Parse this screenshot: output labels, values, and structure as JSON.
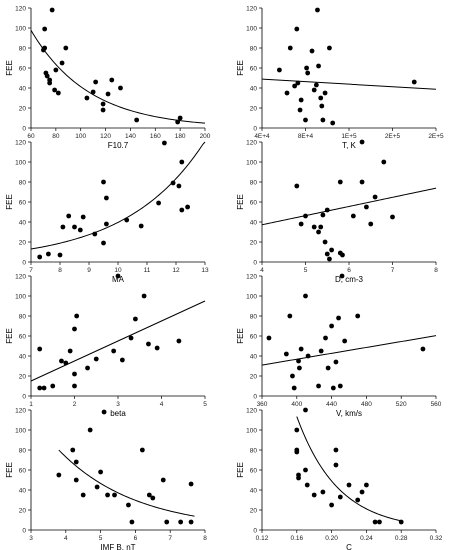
{
  "chart_data": [
    {
      "type": "scatter",
      "xlabel": "F10.7",
      "ylabel": "FEE",
      "xlim": [
        60,
        200
      ],
      "ylim": [
        0,
        120
      ],
      "xticks": [
        "60",
        "80",
        "100",
        "120",
        "140",
        "160",
        "180",
        "200"
      ],
      "yticks": [
        "0",
        "20",
        "40",
        "60",
        "80",
        "100",
        "120"
      ],
      "points": [
        [
          70,
          78
        ],
        [
          71,
          80
        ],
        [
          71,
          99
        ],
        [
          72,
          55
        ],
        [
          73,
          52
        ],
        [
          75,
          48
        ],
        [
          75,
          45
        ],
        [
          77,
          118
        ],
        [
          79,
          38
        ],
        [
          80,
          58
        ],
        [
          82,
          35
        ],
        [
          85,
          65
        ],
        [
          88,
          80
        ],
        [
          105,
          30
        ],
        [
          110,
          36
        ],
        [
          112,
          46
        ],
        [
          118,
          18
        ],
        [
          118,
          24
        ],
        [
          122,
          34
        ],
        [
          125,
          48
        ],
        [
          132,
          40
        ],
        [
          145,
          8
        ],
        [
          178,
          6
        ],
        [
          180,
          10
        ]
      ],
      "fit": {
        "kind": "exp",
        "a": 355,
        "b": -0.0215
      }
    },
    {
      "type": "scatter",
      "xlabel": "T, K",
      "ylabel": "FEE",
      "xlim": [
        40000,
        200000
      ],
      "ylim": [
        0,
        120
      ],
      "xticks": [
        "4E+4",
        "8E+4",
        "1E+5",
        "2E+5",
        "2E+5"
      ],
      "yticks": [
        "0",
        "20",
        "40",
        "60",
        "80",
        "100",
        "120"
      ],
      "points": [
        [
          56000,
          58
        ],
        [
          63000,
          35
        ],
        [
          66000,
          80
        ],
        [
          70000,
          42
        ],
        [
          72000,
          99
        ],
        [
          73000,
          45
        ],
        [
          75000,
          18
        ],
        [
          76000,
          28
        ],
        [
          80000,
          8
        ],
        [
          81000,
          60
        ],
        [
          82000,
          55
        ],
        [
          86000,
          77
        ],
        [
          88000,
          38
        ],
        [
          90000,
          43
        ],
        [
          91000,
          118
        ],
        [
          92000,
          62
        ],
        [
          94000,
          30
        ],
        [
          95000,
          22
        ],
        [
          96000,
          8
        ],
        [
          98000,
          35
        ],
        [
          102000,
          80
        ],
        [
          105000,
          5
        ],
        [
          180000,
          46
        ]
      ],
      "fit": {
        "kind": "linear",
        "a": 51.5,
        "b": -6.4e-05
      }
    },
    {
      "type": "scatter",
      "xlabel": "MA",
      "ylabel": "FEE",
      "xlim": [
        7,
        13
      ],
      "ylim": [
        0,
        120
      ],
      "xticks": [
        "7",
        "8",
        "9",
        "10",
        "11",
        "12",
        "13"
      ],
      "yticks": [
        "0",
        "20",
        "40",
        "60",
        "80",
        "100",
        "120"
      ],
      "points": [
        [
          7.3,
          5
        ],
        [
          7.6,
          8
        ],
        [
          8.0,
          7
        ],
        [
          8.1,
          35
        ],
        [
          8.3,
          46
        ],
        [
          8.5,
          35
        ],
        [
          8.7,
          32
        ],
        [
          8.8,
          45
        ],
        [
          9.2,
          28
        ],
        [
          9.5,
          19
        ],
        [
          9.5,
          80
        ],
        [
          9.6,
          38
        ],
        [
          9.6,
          64
        ],
        [
          10.3,
          42
        ],
        [
          10.8,
          36
        ],
        [
          11.4,
          59
        ],
        [
          11.6,
          119
        ],
        [
          11.9,
          79
        ],
        [
          12.1,
          76
        ],
        [
          12.2,
          100
        ],
        [
          12.2,
          52
        ],
        [
          12.4,
          55
        ]
      ],
      "fit": {
        "kind": "exp",
        "a": 0.96,
        "b": 0.372
      }
    },
    {
      "type": "scatter",
      "xlabel": "D, cm-3",
      "ylabel": "FEE",
      "xlim": [
        4,
        8
      ],
      "ylim": [
        0,
        120
      ],
      "xticks": [
        "4",
        "5",
        "6",
        "7",
        "8"
      ],
      "yticks": [
        "0",
        "20",
        "40",
        "60",
        "80",
        "100",
        "120"
      ],
      "points": [
        [
          4.8,
          76
        ],
        [
          4.9,
          38
        ],
        [
          5.0,
          46
        ],
        [
          5.2,
          35
        ],
        [
          5.3,
          30
        ],
        [
          5.35,
          35
        ],
        [
          5.4,
          47
        ],
        [
          5.45,
          20
        ],
        [
          5.5,
          8
        ],
        [
          5.5,
          52
        ],
        [
          5.55,
          3
        ],
        [
          5.6,
          12
        ],
        [
          5.8,
          80
        ],
        [
          5.8,
          9
        ],
        [
          5.85,
          7
        ],
        [
          6.1,
          46
        ],
        [
          6.3,
          120
        ],
        [
          6.3,
          80
        ],
        [
          6.4,
          55
        ],
        [
          6.5,
          38
        ],
        [
          6.6,
          65
        ],
        [
          6.8,
          100
        ],
        [
          7.0,
          45
        ]
      ],
      "fit": {
        "kind": "linear",
        "a": 0.63,
        "b": 9.15
      }
    },
    {
      "type": "scatter",
      "xlabel": "beta",
      "ylabel": "FEE",
      "xlim": [
        1,
        5
      ],
      "ylim": [
        0,
        120
      ],
      "xticks": [
        "1",
        "2",
        "3",
        "4",
        "5"
      ],
      "yticks": [
        "0",
        "20",
        "40",
        "60",
        "80",
        "100",
        "120"
      ],
      "points": [
        [
          1.2,
          47
        ],
        [
          1.2,
          8
        ],
        [
          1.3,
          8
        ],
        [
          1.5,
          10
        ],
        [
          1.7,
          35
        ],
        [
          1.8,
          33
        ],
        [
          1.9,
          45
        ],
        [
          2.0,
          10
        ],
        [
          2.0,
          22
        ],
        [
          2.0,
          67
        ],
        [
          2.05,
          80
        ],
        [
          2.3,
          28
        ],
        [
          2.5,
          37
        ],
        [
          2.9,
          45
        ],
        [
          3.0,
          120
        ],
        [
          3.1,
          36
        ],
        [
          3.3,
          58
        ],
        [
          3.4,
          77
        ],
        [
          3.6,
          100
        ],
        [
          3.7,
          52
        ],
        [
          3.9,
          48
        ],
        [
          4.4,
          55
        ]
      ],
      "fit": {
        "kind": "linear",
        "a": -5.0,
        "b": 20.0
      }
    },
    {
      "type": "scatter",
      "xlabel": "V, km/s",
      "ylabel": "FEE",
      "xlim": [
        360,
        560
      ],
      "ylim": [
        0,
        120
      ],
      "xticks": [
        "360",
        "400",
        "440",
        "480",
        "520",
        "560"
      ],
      "yticks": [
        "0",
        "20",
        "40",
        "60",
        "80",
        "100",
        "120"
      ],
      "points": [
        [
          368,
          58
        ],
        [
          388,
          42
        ],
        [
          392,
          80
        ],
        [
          395,
          20
        ],
        [
          397,
          8
        ],
        [
          402,
          35
        ],
        [
          403,
          28
        ],
        [
          405,
          47
        ],
        [
          410,
          100
        ],
        [
          413,
          40
        ],
        [
          425,
          10
        ],
        [
          428,
          45
        ],
        [
          433,
          58
        ],
        [
          436,
          28
        ],
        [
          440,
          70
        ],
        [
          442,
          8
        ],
        [
          445,
          34
        ],
        [
          448,
          78
        ],
        [
          450,
          10
        ],
        [
          452,
          120
        ],
        [
          455,
          55
        ],
        [
          470,
          80
        ],
        [
          545,
          47
        ]
      ],
      "fit": {
        "kind": "linear",
        "a": -22.0,
        "b": 0.147
      }
    },
    {
      "type": "scatter",
      "xlabel": "IMF B, nT",
      "ylabel": "FEE",
      "xlim": [
        3,
        8
      ],
      "ylim": [
        0,
        120
      ],
      "xticks": [
        "3",
        "4",
        "5",
        "6",
        "7",
        "8"
      ],
      "yticks": [
        "0",
        "20",
        "40",
        "60",
        "80",
        "100",
        "120"
      ],
      "points": [
        [
          3.8,
          55
        ],
        [
          4.2,
          80
        ],
        [
          4.3,
          68
        ],
        [
          4.3,
          50
        ],
        [
          4.5,
          35
        ],
        [
          4.7,
          100
        ],
        [
          4.9,
          43
        ],
        [
          5.0,
          58
        ],
        [
          5.1,
          118
        ],
        [
          5.2,
          35
        ],
        [
          5.4,
          35
        ],
        [
          5.8,
          25
        ],
        [
          5.9,
          8
        ],
        [
          6.2,
          80
        ],
        [
          6.4,
          35
        ],
        [
          6.5,
          32
        ],
        [
          6.8,
          50
        ],
        [
          6.9,
          8
        ],
        [
          7.3,
          8
        ],
        [
          7.6,
          8
        ],
        [
          7.6,
          46
        ]
      ],
      "fit": {
        "kind": "exp",
        "a": 442,
        "b": -0.45,
        "xrange": [
          3.8,
          7.7
        ]
      }
    },
    {
      "type": "scatter",
      "xlabel": "C",
      "ylabel": "FEE",
      "xlim": [
        0.12,
        0.32
      ],
      "ylim": [
        0,
        120
      ],
      "xticks": [
        "0.12",
        "0.16",
        "0.20",
        "0.24",
        "0.28",
        "0.32"
      ],
      "yticks": [
        "0",
        "20",
        "40",
        "60",
        "80",
        "100",
        "120"
      ],
      "points": [
        [
          0.16,
          100
        ],
        [
          0.16,
          80
        ],
        [
          0.16,
          78
        ],
        [
          0.162,
          55
        ],
        [
          0.162,
          52
        ],
        [
          0.17,
          60
        ],
        [
          0.17,
          120
        ],
        [
          0.172,
          45
        ],
        [
          0.18,
          35
        ],
        [
          0.19,
          38
        ],
        [
          0.2,
          25
        ],
        [
          0.205,
          80
        ],
        [
          0.205,
          65
        ],
        [
          0.21,
          33
        ],
        [
          0.22,
          45
        ],
        [
          0.23,
          30
        ],
        [
          0.235,
          38
        ],
        [
          0.24,
          45
        ],
        [
          0.25,
          8
        ],
        [
          0.255,
          8
        ],
        [
          0.28,
          8
        ]
      ],
      "fit": {
        "kind": "exp",
        "a": 3266,
        "b": -21.0,
        "xrange": [
          0.16,
          0.28
        ]
      }
    }
  ]
}
